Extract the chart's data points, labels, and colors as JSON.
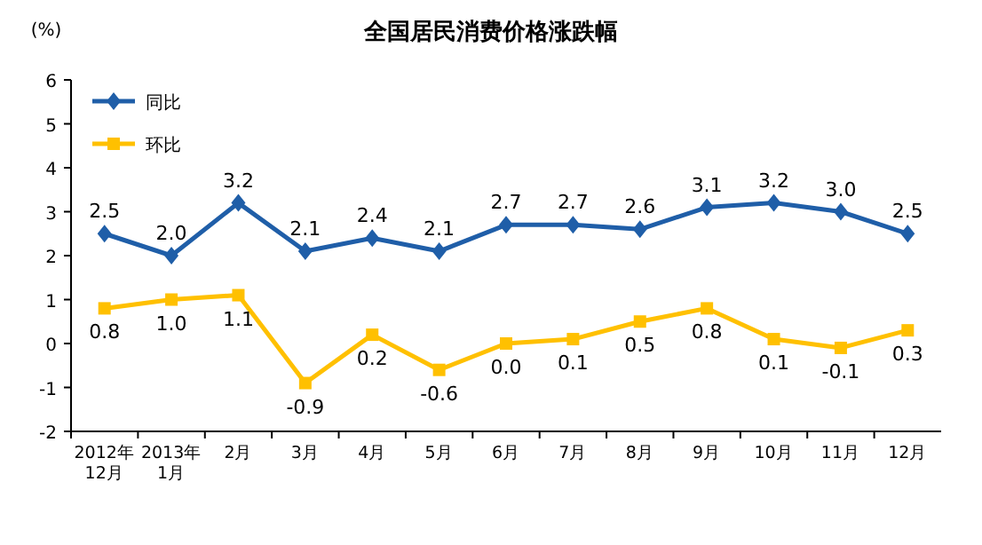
{
  "chart_data": {
    "type": "line",
    "title": "全国居民消费价格涨跌幅",
    "ylabel": "(%)",
    "categories": [
      "2012年\n12月",
      "2013年\n1月",
      "2月",
      "3月",
      "4月",
      "5月",
      "6月",
      "7月",
      "8月",
      "9月",
      "10月",
      "11月",
      "12月"
    ],
    "series": [
      {
        "name": "同比",
        "color": "#1f5ea8",
        "marker": "diamond",
        "values": [
          2.5,
          2.0,
          3.2,
          2.1,
          2.4,
          2.1,
          2.7,
          2.7,
          2.6,
          3.1,
          3.2,
          3.0,
          2.5
        ],
        "value_labels": [
          "2.5",
          "2.0",
          "3.2",
          "2.1",
          "2.4",
          "2.1",
          "2.7",
          "2.7",
          "2.6",
          "3.1",
          "3.2",
          "3.0",
          "2.5"
        ]
      },
      {
        "name": "环比",
        "color": "#ffc000",
        "marker": "square",
        "values": [
          0.8,
          1.0,
          1.1,
          -0.9,
          0.2,
          -0.6,
          0.0,
          0.1,
          0.5,
          0.8,
          0.1,
          -0.1,
          0.3
        ],
        "value_labels": [
          "0.8",
          "1.0",
          "1.1",
          "-0.9",
          "0.2",
          "-0.6",
          "0.0",
          "0.1",
          "0.5",
          "0.8",
          "0.1",
          "-0.1",
          "0.3"
        ]
      }
    ],
    "ylim": [
      -2,
      6
    ],
    "yticks": [
      -2,
      -1,
      0,
      1,
      2,
      3,
      4,
      5,
      6
    ],
    "legend": "top left",
    "grid": false
  }
}
